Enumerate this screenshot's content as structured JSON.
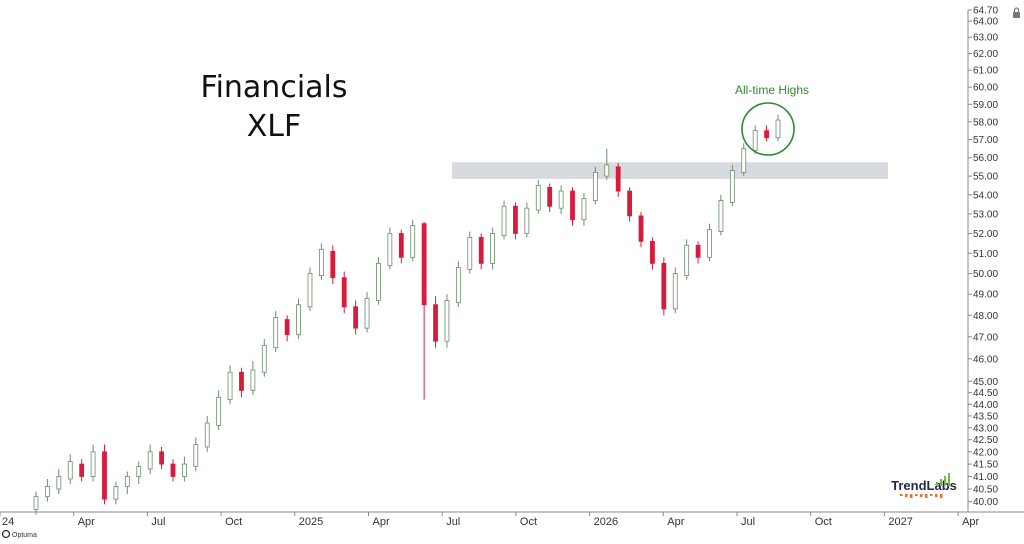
{
  "chart_data": {
    "type": "candlestick",
    "title": "Financials",
    "subtitle": "XLF",
    "annotation": "All-time Highs",
    "brand": "TrendLabs",
    "watermark": "Optuma",
    "y_scale": "log",
    "ylim": [
      39.6,
      64.7
    ],
    "grid": false,
    "y_ticks": [
      "64.70",
      "64.00",
      "63.00",
      "62.00",
      "61.00",
      "60.00",
      "59.00",
      "58.00",
      "57.00",
      "56.00",
      "55.00",
      "54.00",
      "53.00",
      "52.00",
      "51.00",
      "50.00",
      "49.00",
      "48.00",
      "47.00",
      "46.00",
      "45.00",
      "44.50",
      "44.00",
      "43.50",
      "43.00",
      "42.50",
      "42.00",
      "41.50",
      "41.00",
      "40.50",
      "40.00"
    ],
    "x_ticks": [
      "24",
      "Apr",
      "Jul",
      "Oct",
      "2025",
      "Apr",
      "Jul",
      "Oct",
      "2026",
      "Apr",
      "Jul",
      "Oct",
      "2027",
      "Apr"
    ],
    "resistance_zone": [
      54.85,
      55.75
    ],
    "colors": {
      "up": "#2e7d32",
      "down": "#d81b3c",
      "zone": "#d7dbe0",
      "annotation": "#2e8b2e",
      "axis": "#888888",
      "text": "#222222",
      "brand_dots": "#e8732a"
    },
    "candles": [
      [
        "u",
        39.7,
        40.2,
        39.5,
        40.4
      ],
      [
        "u",
        40.2,
        40.6,
        40.0,
        40.9
      ],
      [
        "u",
        40.5,
        41.0,
        40.3,
        41.3
      ],
      [
        "u",
        40.9,
        41.6,
        40.7,
        41.9
      ],
      [
        "d",
        41.5,
        41.0,
        40.8,
        41.7
      ],
      [
        "u",
        41.0,
        42.0,
        40.8,
        42.3
      ],
      [
        "d",
        42.0,
        40.1,
        39.9,
        42.3
      ],
      [
        "u",
        40.1,
        40.6,
        39.9,
        40.8
      ],
      [
        "u",
        40.6,
        41.0,
        40.3,
        41.2
      ],
      [
        "u",
        41.0,
        41.4,
        40.7,
        41.6
      ],
      [
        "u",
        41.3,
        42.0,
        41.1,
        42.3
      ],
      [
        "d",
        42.0,
        41.5,
        41.3,
        42.2
      ],
      [
        "d",
        41.5,
        41.0,
        40.8,
        41.7
      ],
      [
        "u",
        41.0,
        41.5,
        40.8,
        41.8
      ],
      [
        "u",
        41.4,
        42.3,
        41.2,
        42.6
      ],
      [
        "u",
        42.2,
        43.2,
        42.0,
        43.5
      ],
      [
        "u",
        43.1,
        44.3,
        42.9,
        44.6
      ],
      [
        "u",
        44.2,
        45.4,
        44.0,
        45.7
      ],
      [
        "d",
        45.4,
        44.6,
        44.3,
        45.6
      ],
      [
        "u",
        44.6,
        45.5,
        44.4,
        45.9
      ],
      [
        "u",
        45.4,
        46.6,
        45.2,
        46.9
      ],
      [
        "u",
        46.5,
        47.9,
        46.3,
        48.2
      ],
      [
        "d",
        47.8,
        47.1,
        46.8,
        48.0
      ],
      [
        "u",
        47.1,
        48.5,
        46.9,
        48.8
      ],
      [
        "u",
        48.4,
        50.0,
        48.2,
        50.3
      ],
      [
        "u",
        49.9,
        51.2,
        49.7,
        51.5
      ],
      [
        "d",
        51.1,
        49.8,
        49.5,
        51.4
      ],
      [
        "d",
        49.8,
        48.4,
        48.1,
        50.1
      ],
      [
        "d",
        48.4,
        47.4,
        47.1,
        48.7
      ],
      [
        "u",
        47.4,
        48.8,
        47.2,
        49.1
      ],
      [
        "u",
        48.7,
        50.5,
        48.5,
        50.8
      ],
      [
        "u",
        50.4,
        52.0,
        50.2,
        52.3
      ],
      [
        "d",
        52.0,
        50.8,
        50.5,
        52.2
      ],
      [
        "u",
        50.8,
        52.4,
        50.6,
        52.7
      ],
      [
        "d",
        52.5,
        48.5,
        44.2,
        52.6
      ],
      [
        "d",
        48.5,
        46.8,
        46.5,
        48.9
      ],
      [
        "u",
        46.8,
        48.7,
        46.5,
        49.0
      ],
      [
        "u",
        48.6,
        50.3,
        48.4,
        50.6
      ],
      [
        "u",
        50.2,
        51.8,
        50.0,
        52.1
      ],
      [
        "d",
        51.8,
        50.5,
        50.2,
        52.0
      ],
      [
        "u",
        50.5,
        52.0,
        50.2,
        52.3
      ],
      [
        "u",
        51.9,
        53.4,
        51.7,
        53.7
      ],
      [
        "d",
        53.4,
        52.0,
        51.7,
        53.6
      ],
      [
        "u",
        52.0,
        53.3,
        51.8,
        53.6
      ],
      [
        "u",
        53.2,
        54.5,
        53.0,
        54.8
      ],
      [
        "d",
        54.4,
        53.4,
        53.1,
        54.6
      ],
      [
        "u",
        53.3,
        54.2,
        53.0,
        54.5
      ],
      [
        "d",
        54.2,
        52.7,
        52.4,
        54.4
      ],
      [
        "u",
        52.7,
        53.8,
        52.4,
        54.1
      ],
      [
        "u",
        53.7,
        55.2,
        53.5,
        55.5
      ],
      [
        "u",
        55.0,
        55.6,
        54.8,
        56.5
      ],
      [
        "d",
        55.5,
        54.2,
        53.9,
        55.7
      ],
      [
        "d",
        54.2,
        52.9,
        52.6,
        54.4
      ],
      [
        "d",
        52.9,
        51.6,
        51.3,
        53.1
      ],
      [
        "d",
        51.6,
        50.5,
        50.2,
        51.8
      ],
      [
        "d",
        50.5,
        48.3,
        48.0,
        50.8
      ],
      [
        "u",
        48.3,
        50.0,
        48.1,
        50.3
      ],
      [
        "u",
        49.9,
        51.4,
        49.7,
        51.7
      ],
      [
        "d",
        51.4,
        50.8,
        50.5,
        51.6
      ],
      [
        "u",
        50.8,
        52.2,
        50.6,
        52.5
      ],
      [
        "u",
        52.1,
        53.7,
        51.9,
        54.0
      ],
      [
        "u",
        53.6,
        55.3,
        53.4,
        55.6
      ],
      [
        "u",
        55.2,
        56.5,
        55.0,
        56.8
      ],
      [
        "u",
        56.4,
        57.5,
        56.2,
        57.8
      ],
      [
        "d",
        57.5,
        57.1,
        56.9,
        57.8
      ],
      [
        "u",
        57.1,
        58.1,
        56.9,
        58.4
      ]
    ]
  }
}
